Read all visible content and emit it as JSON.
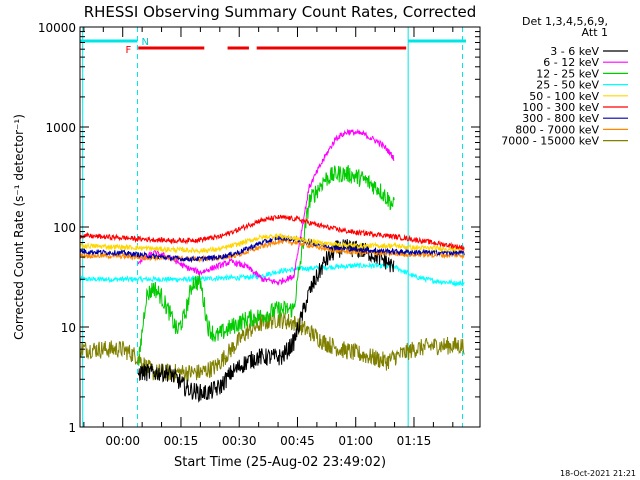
{
  "chart_data": {
    "type": "line",
    "title": "RHESSI Observing Summary Count Rates, Corrected",
    "xlabel": "Start Time (25-Aug-02 23:49:02)",
    "ylabel": "Corrected Count Rate (s⁻¹ detector⁻¹)",
    "x_unit": "minutes after 00:00 (25-Aug-02 23:49:02 start)",
    "xlim": [
      -11,
      92
    ],
    "yscale": "log",
    "ylim": [
      1,
      10000
    ],
    "x_ticks": [
      {
        "value": 0,
        "label": "00:00"
      },
      {
        "value": 15,
        "label": "00:15"
      },
      {
        "value": 30,
        "label": "00:30"
      },
      {
        "value": 45,
        "label": "00:45"
      },
      {
        "value": 60,
        "label": "01:00"
      },
      {
        "value": 75,
        "label": "01:15"
      }
    ],
    "y_ticks": [
      {
        "value": 1,
        "label": "1"
      },
      {
        "value": 10,
        "label": "10"
      },
      {
        "value": 100,
        "label": "100"
      },
      {
        "value": 1000,
        "label": "1000"
      },
      {
        "value": 10000,
        "label": "10000"
      }
    ],
    "legend_header": [
      "Det 1,3,4,5,6,9,",
      "Att 1"
    ],
    "series": [
      {
        "name": "3 - 6 keV",
        "color": "#000000",
        "x": [
          4,
          8,
          12,
          14,
          16,
          18,
          20,
          22,
          25,
          28,
          32,
          35,
          38,
          41,
          44,
          48,
          52,
          55,
          58,
          62,
          65,
          68,
          70
        ],
        "values": [
          3.5,
          3.5,
          3.5,
          3,
          2.5,
          2.3,
          2.2,
          2.2,
          2.5,
          3.5,
          4.5,
          5,
          5,
          5,
          7,
          22,
          45,
          60,
          62,
          58,
          52,
          45,
          38
        ]
      },
      {
        "name": "6 - 12 keV",
        "color": "#ff00ff",
        "x": [
          4,
          8,
          12,
          16,
          20,
          24,
          28,
          32,
          36,
          40,
          44,
          48,
          52,
          55,
          58,
          62,
          66,
          68,
          70
        ],
        "values": [
          45,
          55,
          50,
          40,
          35,
          40,
          45,
          40,
          30,
          28,
          32,
          250,
          500,
          780,
          900,
          850,
          700,
          600,
          480
        ]
      },
      {
        "name": "12 - 25 keV",
        "color": "#00cc00",
        "x": [
          4,
          6,
          8,
          10,
          12,
          14,
          16,
          18,
          20,
          22,
          24,
          26,
          28,
          32,
          36,
          40,
          44,
          48,
          52,
          55,
          58,
          62,
          66,
          70
        ],
        "values": [
          4,
          20,
          25,
          20,
          14,
          9,
          13,
          28,
          28,
          10,
          8,
          9,
          10,
          12,
          13,
          15,
          15,
          180,
          300,
          340,
          340,
          300,
          240,
          160
        ]
      },
      {
        "name": "25 - 50 keV",
        "color": "#00ffff",
        "x": [
          -11,
          0,
          4,
          10,
          15,
          20,
          25,
          30,
          35,
          40,
          45,
          50,
          55,
          60,
          65,
          70,
          75,
          80,
          88
        ],
        "values": [
          30,
          30,
          30,
          30,
          30,
          30,
          31,
          31,
          32,
          36,
          38,
          39,
          40,
          41,
          41,
          40,
          32,
          29,
          27
        ]
      },
      {
        "name": "50 - 100 keV",
        "color": "#ffd700",
        "x": [
          -11,
          0,
          4,
          10,
          15,
          20,
          25,
          30,
          35,
          40,
          45,
          50,
          55,
          60,
          65,
          70,
          75,
          88
        ],
        "values": [
          65,
          63,
          62,
          60,
          59,
          58,
          60,
          68,
          78,
          82,
          76,
          70,
          67,
          65,
          65,
          65,
          62,
          60
        ]
      },
      {
        "name": "100 - 300 keV",
        "color": "#ff0000",
        "x": [
          -11,
          0,
          4,
          10,
          15,
          20,
          25,
          30,
          35,
          40,
          45,
          50,
          55,
          60,
          65,
          70,
          75,
          88
        ],
        "values": [
          82,
          78,
          76,
          74,
          73,
          75,
          80,
          95,
          115,
          125,
          120,
          105,
          95,
          88,
          85,
          80,
          75,
          62
        ]
      },
      {
        "name": "300 - 800 keV",
        "color": "#0000aa",
        "x": [
          -11,
          0,
          4,
          10,
          15,
          20,
          25,
          30,
          35,
          40,
          45,
          50,
          55,
          60,
          65,
          70,
          75,
          88
        ],
        "values": [
          57,
          55,
          53,
          50,
          48,
          48,
          50,
          56,
          68,
          78,
          75,
          68,
          62,
          60,
          58,
          57,
          56,
          55
        ]
      },
      {
        "name": "800 - 7000 keV",
        "color": "#ff8800",
        "x": [
          -11,
          0,
          4,
          10,
          15,
          20,
          25,
          30,
          35,
          40,
          45,
          50,
          55,
          60,
          65,
          70,
          75,
          88
        ],
        "values": [
          52,
          51,
          50,
          49,
          48,
          48,
          49,
          53,
          62,
          72,
          70,
          63,
          58,
          56,
          55,
          54,
          53,
          52
        ]
      },
      {
        "name": "7000 - 15000 keV",
        "color": "#808000",
        "x": [
          -11,
          -5,
          0,
          4,
          6,
          8,
          12,
          16,
          20,
          24,
          28,
          32,
          36,
          40,
          44,
          48,
          52,
          56,
          60,
          64,
          68,
          70,
          75,
          80,
          88
        ],
        "values": [
          6,
          6,
          6,
          5,
          4,
          3.5,
          3.5,
          3.5,
          3.5,
          4,
          6,
          9,
          11,
          12,
          11,
          9,
          7,
          6,
          5.5,
          5,
          4.5,
          5,
          6,
          6.5,
          6.5
        ]
      }
    ],
    "top_bar_labels": {
      "night": "N",
      "flare": "F"
    },
    "footer": "18-Oct-2021 21:21"
  }
}
